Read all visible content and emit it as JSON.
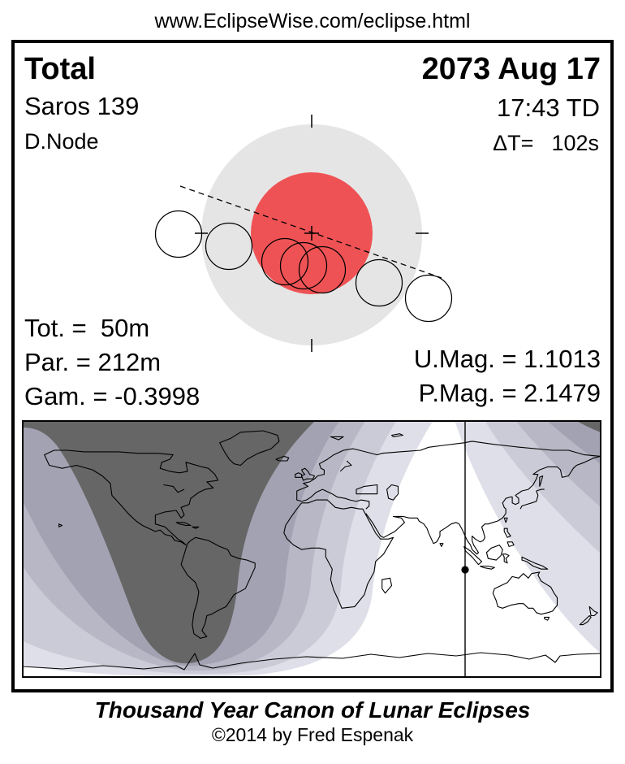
{
  "page": {
    "url": "www.EclipseWise.com/eclipse.html"
  },
  "eclipse": {
    "type": "Total",
    "saros": "Saros 139",
    "node": "D.Node",
    "date": "2073 Aug 17",
    "time": "17:43 TD",
    "delta_t_label": "ΔT=",
    "delta_t_value": "102s",
    "totality_duration": "Tot. =  50m",
    "partial_duration": "Par. = 212m",
    "gamma": "Gam. = -0.3998",
    "umbral_magnitude": "U.Mag. = 1.1013",
    "penumbral_magnitude": "P.Mag. = 2.1479"
  },
  "footer": {
    "title": "Thousand Year Canon of Lunar Eclipses",
    "copyright": "©2014 by Fred Espenak"
  },
  "colors": {
    "umbra": "#ef5254",
    "penumbra": "#e5e5e5",
    "outline": "#000000",
    "map_eclipse_not_visible": "#666666",
    "map_visibility_bands": [
      "#a2a2b2",
      "#b7b7c5",
      "#cbcbd8",
      "#dfdfe9"
    ],
    "map_eclipse_visible": "#ffffff"
  }
}
